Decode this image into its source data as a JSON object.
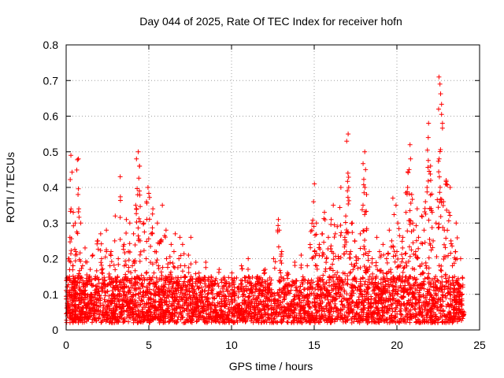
{
  "chart_data": {
    "type": "scatter",
    "title": "Day 044 of 2025, Rate Of TEC Index for receiver hofn",
    "xlabel": "GPS time / hours",
    "ylabel": "ROTI / TECUs",
    "xlim": [
      0,
      25
    ],
    "ylim": [
      0,
      0.8
    ],
    "xticks": [
      0,
      5,
      10,
      15,
      20,
      25
    ],
    "xtick_labels": [
      "0",
      "5",
      "10",
      "15",
      "20",
      "25"
    ],
    "yticks": [
      0,
      0.1,
      0.2,
      0.3,
      0.4,
      0.5,
      0.6,
      0.7,
      0.8
    ],
    "ytick_labels": [
      "0",
      "0.1",
      "0.2",
      "0.3",
      "0.4",
      "0.5",
      "0.6",
      "0.7",
      "0.8"
    ],
    "grid": true,
    "marker": "+",
    "color": "#ff0000",
    "series": [
      {
        "name": "ROTI",
        "points": [
          [
            0.05,
            0.14
          ],
          [
            0.1,
            0.08
          ],
          [
            0.15,
            0.2
          ],
          [
            0.2,
            0.05
          ],
          [
            0.25,
            0.26
          ],
          [
            0.3,
            0.49
          ],
          [
            0.35,
            0.12
          ],
          [
            0.4,
            0.33
          ],
          [
            0.45,
            0.18
          ],
          [
            0.5,
            0.3
          ],
          [
            0.55,
            0.07
          ],
          [
            0.6,
            0.22
          ],
          [
            0.7,
            0.48
          ],
          [
            0.75,
            0.38
          ],
          [
            0.8,
            0.34
          ],
          [
            0.85,
            0.15
          ],
          [
            0.9,
            0.3
          ],
          [
            0.95,
            0.06
          ],
          [
            1.0,
            0.18
          ],
          [
            1.1,
            0.12
          ],
          [
            1.2,
            0.23
          ],
          [
            1.3,
            0.09
          ],
          [
            1.4,
            0.17
          ],
          [
            1.5,
            0.1
          ],
          [
            1.6,
            0.21
          ],
          [
            1.7,
            0.08
          ],
          [
            1.8,
            0.15
          ],
          [
            1.9,
            0.25
          ],
          [
            2.0,
            0.11
          ],
          [
            2.1,
            0.27
          ],
          [
            2.2,
            0.2
          ],
          [
            2.3,
            0.13
          ],
          [
            2.4,
            0.28
          ],
          [
            2.5,
            0.07
          ],
          [
            2.6,
            0.18
          ],
          [
            2.7,
            0.22
          ],
          [
            2.8,
            0.1
          ],
          [
            2.9,
            0.25
          ],
          [
            3.0,
            0.32
          ],
          [
            3.1,
            0.15
          ],
          [
            3.2,
            0.2
          ],
          [
            3.3,
            0.43
          ],
          [
            3.4,
            0.12
          ],
          [
            3.5,
            0.24
          ],
          [
            3.6,
            0.31
          ],
          [
            3.7,
            0.09
          ],
          [
            3.8,
            0.22
          ],
          [
            3.9,
            0.3
          ],
          [
            4.0,
            0.18
          ],
          [
            4.1,
            0.27
          ],
          [
            4.2,
            0.35
          ],
          [
            4.3,
            0.48
          ],
          [
            4.35,
            0.5
          ],
          [
            4.4,
            0.46
          ],
          [
            4.45,
            0.39
          ],
          [
            4.5,
            0.25
          ],
          [
            4.6,
            0.14
          ],
          [
            4.7,
            0.3
          ],
          [
            4.8,
            0.2
          ],
          [
            4.9,
            0.36
          ],
          [
            5.0,
            0.4
          ],
          [
            5.1,
            0.27
          ],
          [
            5.2,
            0.34
          ],
          [
            5.3,
            0.16
          ],
          [
            5.4,
            0.22
          ],
          [
            5.5,
            0.3
          ],
          [
            5.6,
            0.18
          ],
          [
            5.7,
            0.25
          ],
          [
            5.8,
            0.35
          ],
          [
            5.9,
            0.12
          ],
          [
            6.0,
            0.28
          ],
          [
            6.1,
            0.2
          ],
          [
            6.2,
            0.15
          ],
          [
            6.3,
            0.24
          ],
          [
            6.4,
            0.1
          ],
          [
            6.5,
            0.22
          ],
          [
            6.6,
            0.27
          ],
          [
            6.7,
            0.14
          ],
          [
            6.8,
            0.2
          ],
          [
            6.9,
            0.26
          ],
          [
            7.0,
            0.12
          ],
          [
            7.1,
            0.24
          ],
          [
            7.2,
            0.18
          ],
          [
            7.3,
            0.09
          ],
          [
            7.4,
            0.21
          ],
          [
            7.5,
            0.15
          ],
          [
            7.6,
            0.26
          ],
          [
            7.7,
            0.11
          ],
          [
            7.8,
            0.19
          ],
          [
            7.9,
            0.08
          ],
          [
            8.0,
            0.16
          ],
          [
            8.2,
            0.12
          ],
          [
            8.4,
            0.19
          ],
          [
            8.6,
            0.1
          ],
          [
            8.8,
            0.15
          ],
          [
            9.0,
            0.13
          ],
          [
            9.2,
            0.17
          ],
          [
            9.4,
            0.08
          ],
          [
            9.6,
            0.14
          ],
          [
            9.8,
            0.11
          ],
          [
            10.0,
            0.16
          ],
          [
            10.2,
            0.12
          ],
          [
            10.4,
            0.07
          ],
          [
            10.6,
            0.18
          ],
          [
            10.8,
            0.1
          ],
          [
            11.0,
            0.2
          ],
          [
            11.2,
            0.13
          ],
          [
            11.4,
            0.06
          ],
          [
            11.6,
            0.15
          ],
          [
            11.8,
            0.11
          ],
          [
            12.0,
            0.17
          ],
          [
            12.2,
            0.09
          ],
          [
            12.4,
            0.14
          ],
          [
            12.6,
            0.2
          ],
          [
            12.8,
            0.31
          ],
          [
            12.9,
            0.28
          ],
          [
            13.0,
            0.22
          ],
          [
            13.2,
            0.12
          ],
          [
            13.4,
            0.16
          ],
          [
            13.6,
            0.08
          ],
          [
            13.8,
            0.19
          ],
          [
            14.0,
            0.11
          ],
          [
            14.2,
            0.21
          ],
          [
            14.4,
            0.14
          ],
          [
            14.6,
            0.18
          ],
          [
            14.8,
            0.28
          ],
          [
            14.9,
            0.36
          ],
          [
            15.0,
            0.41
          ],
          [
            15.1,
            0.3
          ],
          [
            15.2,
            0.18
          ],
          [
            15.3,
            0.24
          ],
          [
            15.4,
            0.12
          ],
          [
            15.5,
            0.27
          ],
          [
            15.6,
            0.33
          ],
          [
            15.7,
            0.2
          ],
          [
            15.8,
            0.26
          ],
          [
            15.9,
            0.15
          ],
          [
            16.0,
            0.31
          ],
          [
            16.1,
            0.22
          ],
          [
            16.2,
            0.35
          ],
          [
            16.3,
            0.27
          ],
          [
            16.4,
            0.29
          ],
          [
            16.5,
            0.2
          ],
          [
            16.6,
            0.4
          ],
          [
            16.7,
            0.16
          ],
          [
            16.8,
            0.26
          ],
          [
            16.9,
            0.32
          ],
          [
            17.0,
            0.55
          ],
          [
            17.05,
            0.44
          ],
          [
            17.1,
            0.4
          ],
          [
            17.2,
            0.22
          ],
          [
            17.3,
            0.3
          ],
          [
            17.4,
            0.18
          ],
          [
            17.5,
            0.25
          ],
          [
            17.6,
            0.12
          ],
          [
            17.7,
            0.2
          ],
          [
            17.8,
            0.27
          ],
          [
            17.9,
            0.35
          ],
          [
            18.0,
            0.5
          ],
          [
            18.05,
            0.45
          ],
          [
            18.1,
            0.4
          ],
          [
            18.15,
            0.38
          ],
          [
            18.2,
            0.28
          ],
          [
            18.3,
            0.22
          ],
          [
            18.4,
            0.15
          ],
          [
            18.5,
            0.2
          ],
          [
            18.6,
            0.12
          ],
          [
            18.7,
            0.18
          ],
          [
            18.8,
            0.26
          ],
          [
            18.9,
            0.1
          ],
          [
            19.0,
            0.22
          ],
          [
            19.1,
            0.16
          ],
          [
            19.2,
            0.24
          ],
          [
            19.3,
            0.14
          ],
          [
            19.4,
            0.2
          ],
          [
            19.5,
            0.28
          ],
          [
            19.6,
            0.17
          ],
          [
            19.7,
            0.25
          ],
          [
            19.8,
            0.37
          ],
          [
            19.9,
            0.35
          ],
          [
            20.0,
            0.22
          ],
          [
            20.1,
            0.3
          ],
          [
            20.2,
            0.18
          ],
          [
            20.3,
            0.26
          ],
          [
            20.4,
            0.2
          ],
          [
            20.5,
            0.33
          ],
          [
            20.6,
            0.4
          ],
          [
            20.7,
            0.45
          ],
          [
            20.75,
            0.52
          ],
          [
            20.8,
            0.48
          ],
          [
            20.9,
            0.38
          ],
          [
            21.0,
            0.3
          ],
          [
            21.1,
            0.22
          ],
          [
            21.2,
            0.34
          ],
          [
            21.3,
            0.26
          ],
          [
            21.4,
            0.18
          ],
          [
            21.5,
            0.32
          ],
          [
            21.6,
            0.28
          ],
          [
            21.7,
            0.36
          ],
          [
            21.8,
            0.4
          ],
          [
            21.9,
            0.58
          ],
          [
            21.95,
            0.54
          ],
          [
            22.0,
            0.46
          ],
          [
            22.05,
            0.42
          ],
          [
            22.1,
            0.33
          ],
          [
            22.2,
            0.25
          ],
          [
            22.3,
            0.15
          ],
          [
            22.4,
            0.3
          ],
          [
            22.5,
            0.48
          ],
          [
            22.55,
            0.62
          ],
          [
            22.6,
            0.71
          ],
          [
            22.65,
            0.69
          ],
          [
            22.7,
            0.58
          ],
          [
            22.8,
            0.36
          ],
          [
            22.9,
            0.28
          ],
          [
            23.0,
            0.42
          ],
          [
            23.1,
            0.33
          ],
          [
            23.2,
            0.4
          ],
          [
            23.3,
            0.25
          ],
          [
            23.4,
            0.18
          ],
          [
            23.5,
            0.22
          ],
          [
            23.6,
            0.3
          ],
          [
            23.7,
            0.14
          ],
          [
            23.8,
            0.2
          ],
          [
            23.9,
            0.1
          ],
          [
            24.0,
            0.05
          ]
        ],
        "noise_band": {
          "description": "dense cluster of low ROTI values across the day",
          "x_range": [
            0,
            24
          ],
          "y_range": [
            0.02,
            0.15
          ],
          "count": 2600
        }
      }
    ]
  }
}
